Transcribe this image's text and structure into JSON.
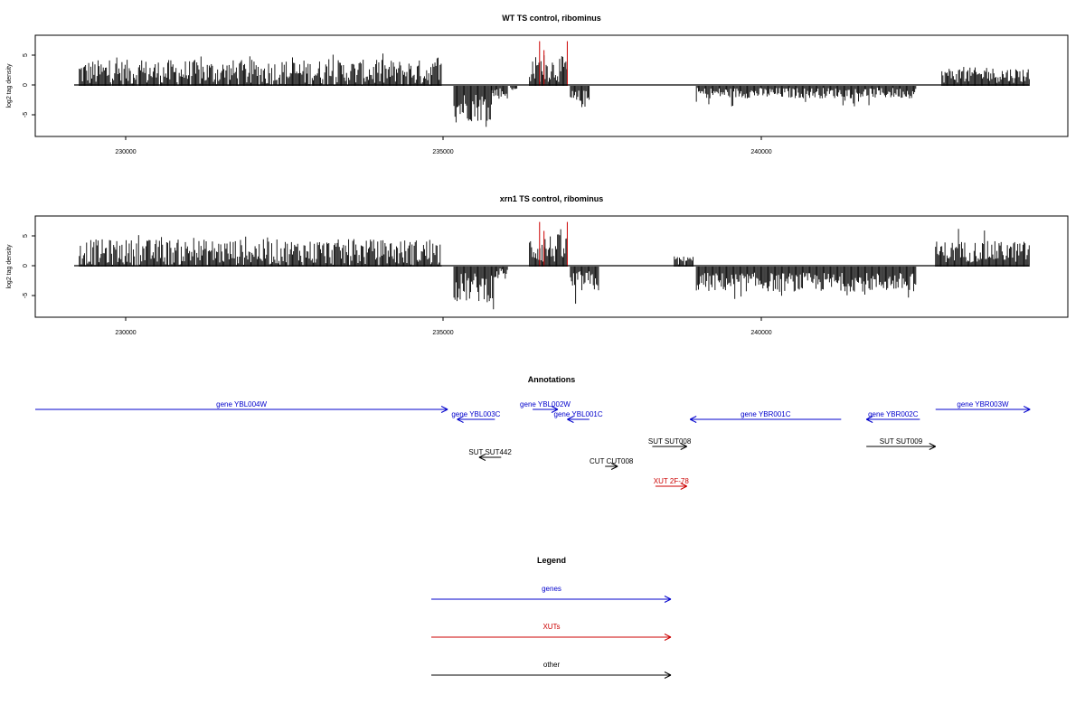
{
  "chart_data": [
    {
      "type": "bar",
      "title": "WT TS control, ribominus",
      "ylabel": "log2 tag density",
      "xlim": [
        228500,
        244900
      ],
      "ylim": [
        -8.5,
        8.5
      ],
      "xticks": [
        "230000",
        "235000",
        "240000"
      ],
      "yticks": [
        "5",
        "0",
        "-5"
      ],
      "color": "#000000",
      "highlight_color": "#cc0000",
      "highlight_x": [
        236510,
        236580,
        236950
      ],
      "highlight_y": [
        7.5,
        6.0,
        7.5
      ],
      "segments": [
        {
          "from": 229200,
          "to": 234950,
          "base": 2.2,
          "amp": 2.2,
          "peak": 5.5
        },
        {
          "from": 235150,
          "to": 235750,
          "base": -3.5,
          "amp": 2.5,
          "peak": -8.0
        },
        {
          "from": 235750,
          "to": 236000,
          "base": -1.2,
          "amp": 1.0,
          "peak": -3.0
        },
        {
          "from": 236050,
          "to": 236150,
          "base": -0.6,
          "amp": 0.4,
          "peak": -1.5
        },
        {
          "from": 236350,
          "to": 236950,
          "base": 2.8,
          "amp": 2.2,
          "peak": 5.5
        },
        {
          "from": 237000,
          "to": 237300,
          "base": -2.2,
          "amp": 1.5,
          "peak": -5.5
        },
        {
          "from": 239000,
          "to": 242500,
          "base": -1.2,
          "amp": 0.9,
          "peak": -3.5
        },
        {
          "from": 242900,
          "to": 244300,
          "base": 1.8,
          "amp": 1.3,
          "peak": 4.0
        }
      ]
    },
    {
      "type": "bar",
      "title": "xrn1 TS control, ribominus",
      "ylabel": "log2 tag density",
      "xlim": [
        228500,
        244900
      ],
      "ylim": [
        -8.5,
        8.5
      ],
      "xticks": [
        "230000",
        "235000",
        "240000"
      ],
      "yticks": [
        "5",
        "0",
        "-5"
      ],
      "color": "#000000",
      "highlight_color": "#cc0000",
      "highlight_x": [
        236510,
        236580,
        236950
      ],
      "highlight_y": [
        7.5,
        6.0,
        7.5
      ],
      "segments": [
        {
          "from": 229200,
          "to": 234950,
          "base": 2.4,
          "amp": 2.2,
          "peak": 5.5
        },
        {
          "from": 235150,
          "to": 235800,
          "base": -3.5,
          "amp": 2.5,
          "peak": -7.8
        },
        {
          "from": 235800,
          "to": 236000,
          "base": -1.2,
          "amp": 1.0,
          "peak": -3.0
        },
        {
          "from": 236350,
          "to": 236950,
          "base": 3.0,
          "amp": 2.5,
          "peak": 6.5
        },
        {
          "from": 237000,
          "to": 237450,
          "base": -2.5,
          "amp": 1.8,
          "peak": -6.5
        },
        {
          "from": 238650,
          "to": 238950,
          "base": 1.0,
          "amp": 0.8,
          "peak": 3.0
        },
        {
          "from": 239000,
          "to": 242500,
          "base": -2.6,
          "amp": 1.6,
          "peak": -5.5
        },
        {
          "from": 242800,
          "to": 244300,
          "base": 2.5,
          "amp": 1.8,
          "peak": 6.5
        }
      ]
    }
  ],
  "annotations": {
    "title": "Annotations",
    "xlim": [
      228500,
      244900
    ],
    "items": [
      {
        "label": "gene YBL004W",
        "start": 228500,
        "end": 235050,
        "dir": 1,
        "row": 0,
        "color": "#0000cc"
      },
      {
        "label": "gene YBL003C",
        "start": 235200,
        "end": 235800,
        "dir": -1,
        "row": 1,
        "color": "#0000cc"
      },
      {
        "label": "gene YBL002W",
        "start": 236400,
        "end": 236800,
        "dir": 1,
        "row": 0,
        "color": "#0000cc"
      },
      {
        "label": "gene YBL001C",
        "start": 236950,
        "end": 237300,
        "dir": -1,
        "row": 1,
        "color": "#0000cc"
      },
      {
        "label": "gene YBR001C",
        "start": 238900,
        "end": 241300,
        "dir": -1,
        "row": 1,
        "color": "#0000cc"
      },
      {
        "label": "gene YBR002C",
        "start": 241700,
        "end": 242550,
        "dir": -1,
        "row": 1,
        "color": "#0000cc"
      },
      {
        "label": "gene YBR003W",
        "start": 242800,
        "end": 244300,
        "dir": 1,
        "row": 0,
        "color": "#0000cc"
      },
      {
        "label": "SUT SUT442",
        "start": 235550,
        "end": 235900,
        "dir": -1,
        "row": 3,
        "color": "#000000"
      },
      {
        "label": "SUT SUT008",
        "start": 238300,
        "end": 238850,
        "dir": 1,
        "row": 2,
        "color": "#000000"
      },
      {
        "label": "SUT SUT009",
        "start": 241700,
        "end": 242800,
        "dir": 1,
        "row": 2,
        "color": "#000000"
      },
      {
        "label": "CUT CUT008",
        "start": 237550,
        "end": 237750,
        "dir": 1,
        "row": 4,
        "color": "#000000"
      },
      {
        "label": "XUT 2F-78",
        "start": 238350,
        "end": 238850,
        "dir": 1,
        "row": 5,
        "color": "#cc0000"
      }
    ]
  },
  "legend": {
    "title": "Legend",
    "items": [
      {
        "label": "genes",
        "color": "#0000cc"
      },
      {
        "label": "XUTs",
        "color": "#cc0000"
      },
      {
        "label": "other",
        "color": "#000000"
      }
    ]
  }
}
